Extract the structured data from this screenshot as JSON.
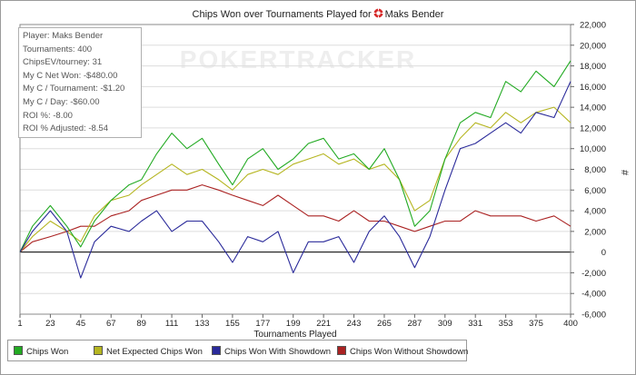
{
  "title_prefix": "Chips Won over Tournaments Played for",
  "player_name": "Maks Bender",
  "watermark": "POKERTRACKER",
  "stats": [
    "Player: Maks Bender",
    "Tournaments: 400",
    "ChipsEV/tourney: 31",
    "My C Net Won: -$480.00",
    "My C / Tournament: -$1.20",
    "My C / Day: -$60.00",
    "ROI %: -8.00",
    "ROI % Adjusted: -8.54"
  ],
  "colors": {
    "chips_won": "#22aa22",
    "net_expected": "#b5b520",
    "with_showdown": "#2a2a9a",
    "without_showdown": "#aa2222"
  },
  "chart_data": {
    "type": "line",
    "title": "Chips Won over Tournaments Played for Maks Bender",
    "xlabel": "Tournaments Played",
    "ylabel": "#",
    "xlim": [
      1,
      400
    ],
    "ylim": [
      -6000,
      22000
    ],
    "x_ticks": [
      1,
      23,
      45,
      67,
      89,
      111,
      133,
      155,
      177,
      199,
      221,
      243,
      265,
      287,
      309,
      331,
      353,
      375,
      400
    ],
    "y_ticks": [
      22000,
      20000,
      18000,
      16000,
      14000,
      12000,
      10000,
      8000,
      6000,
      4000,
      2000,
      0,
      -2000,
      -4000,
      -6000
    ],
    "y_tick_labels": [
      "22,000",
      "20,000",
      "18,000",
      "16,000",
      "14,000",
      "12,000",
      "10,000",
      "8,000",
      "6,000",
      "4,000",
      "2,000",
      "0",
      "-2,000",
      "-4,000",
      "-6,000"
    ],
    "x": [
      1,
      10,
      23,
      35,
      45,
      55,
      67,
      80,
      89,
      100,
      111,
      122,
      133,
      145,
      155,
      166,
      177,
      188,
      199,
      210,
      221,
      232,
      243,
      254,
      265,
      276,
      287,
      298,
      309,
      320,
      331,
      342,
      353,
      364,
      375,
      388,
      400
    ],
    "series": [
      {
        "name": "Chips Won",
        "color_key": "chips_won",
        "values": [
          0,
          2500,
          4500,
          2500,
          500,
          3000,
          5000,
          6500,
          7000,
          9500,
          11500,
          10000,
          11000,
          8500,
          6500,
          9000,
          10000,
          8000,
          9000,
          10500,
          11000,
          9000,
          9500,
          8000,
          10000,
          7000,
          2500,
          4000,
          9000,
          12500,
          13500,
          13000,
          16500,
          15500,
          17500,
          16000,
          18500
        ]
      },
      {
        "name": "Net Expected Chips Won",
        "color_key": "net_expected",
        "values": [
          0,
          1500,
          3000,
          2000,
          1000,
          3500,
          5000,
          5500,
          6500,
          7500,
          8500,
          7500,
          8000,
          7000,
          6000,
          7500,
          8000,
          7500,
          8500,
          9000,
          9500,
          8500,
          9000,
          8000,
          8500,
          7000,
          4000,
          5000,
          9000,
          11000,
          12500,
          12000,
          13500,
          12500,
          13500,
          14000,
          12500
        ]
      },
      {
        "name": "Chips Won With Showdown",
        "color_key": "with_showdown",
        "values": [
          0,
          2000,
          4000,
          2000,
          -2500,
          1000,
          2500,
          2000,
          3000,
          4000,
          2000,
          3000,
          3000,
          1000,
          -1000,
          1500,
          1000,
          2000,
          -2000,
          1000,
          1000,
          1500,
          -1000,
          2000,
          3500,
          1500,
          -1500,
          1500,
          6000,
          10000,
          10500,
          11500,
          12500,
          11500,
          13500,
          13000,
          16500
        ]
      },
      {
        "name": "Chips Won Without Showdown",
        "color_key": "without_showdown",
        "values": [
          0,
          1000,
          1500,
          2000,
          2500,
          2500,
          3500,
          4000,
          5000,
          5500,
          6000,
          6000,
          6500,
          6000,
          5500,
          5000,
          4500,
          5500,
          4500,
          3500,
          3500,
          3000,
          4000,
          3000,
          3000,
          2500,
          2000,
          2500,
          3000,
          3000,
          4000,
          3500,
          3500,
          3500,
          3000,
          3500,
          2500
        ]
      }
    ]
  }
}
